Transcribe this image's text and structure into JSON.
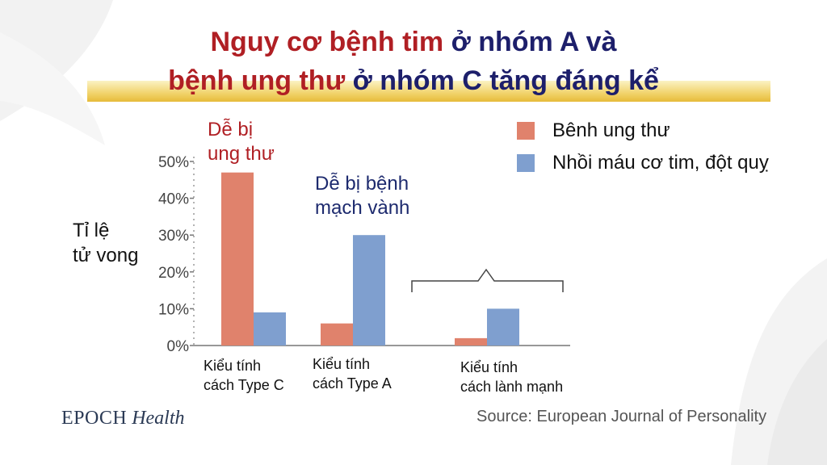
{
  "title": {
    "line1": [
      {
        "text": "Nguy cơ bệnh tim ",
        "color": "red"
      },
      {
        "text": "ở nhóm A và",
        "color": "navy"
      }
    ],
    "line2": [
      {
        "text": "bệnh ung thư ",
        "color": "red"
      },
      {
        "text": "ở nhóm C tăng đáng kể",
        "color": "navy"
      }
    ]
  },
  "annotations": {
    "cancer": [
      "Dễ bị",
      "ung thư"
    ],
    "coronary": [
      "Dễ bị bệnh",
      "mạch vành"
    ]
  },
  "y_axis_label": [
    "Tỉ lệ",
    "tử vong"
  ],
  "legend": [
    {
      "label": "Bênh ung thư",
      "color": "#e0826c"
    },
    {
      "label": "Nhồi máu cơ tim, đột quỵ",
      "color": "#7f9fcf"
    }
  ],
  "categories": [
    [
      "Kiểu tính",
      "cách Type C"
    ],
    [
      "Kiểu tính",
      "cách Type A"
    ],
    [
      "Kiểu tính",
      "cách lành mạnh"
    ]
  ],
  "colors": {
    "red": "#b01f24",
    "navy": "#1d1f6b",
    "cancer": "#e0826c",
    "heart": "#7f9fcf"
  },
  "footer": {
    "brand_primary": "EPOCH",
    "brand_secondary": "Health",
    "source": "Source: European Journal of Personality"
  },
  "chart_data": {
    "type": "bar",
    "categories": [
      "Kiểu tính cách Type C",
      "Kiểu tính cách Type A",
      "Kiểu tính cách lành mạnh"
    ],
    "series": [
      {
        "name": "Bênh ung thư",
        "values": [
          47,
          6,
          2
        ]
      },
      {
        "name": "Nhồi máu cơ tim, đột quỵ",
        "values": [
          9,
          30,
          10
        ]
      }
    ],
    "ylim": [
      0,
      50
    ],
    "yticks": [
      "0%",
      "10%",
      "20%",
      "30%",
      "40%",
      "50%"
    ],
    "ytick_values": [
      0,
      10,
      20,
      30,
      40,
      50
    ],
    "ylabel": "Tỉ lệ tử vong",
    "grid": false,
    "legend_position": "top-right"
  }
}
